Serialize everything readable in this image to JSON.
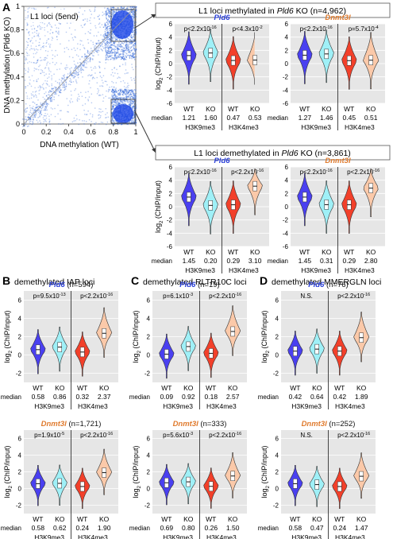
{
  "panels": {
    "A": "A",
    "B": "B",
    "C": "C",
    "D": "D",
    "B_title": "demethylated IAP loci",
    "C_title": "demethylated RLTR10C loci",
    "D_title": "demethylated MMERGLN loci"
  },
  "scatter": {
    "inset_label": "L1 loci (5end)",
    "xlabel": "DNA methylation  (WT)",
    "ylabel": "DNA methylation (Pld6 KO)",
    "xticks": [
      "0",
      "0.2",
      "0.4",
      "0.6",
      "0.8",
      "1"
    ],
    "yticks": [
      "0",
      "0.2",
      "0.4",
      "0.6",
      "0.8",
      "1"
    ]
  },
  "boxes": {
    "top_pre": "L1 loci methylated in ",
    "top_gene": "Pld6",
    "top_post": " KO (n=4,962)",
    "bot_pre": "L1 loci demethylated in ",
    "bot_gene": "Pld6",
    "bot_post": " KO (n=3,861)"
  },
  "axis": {
    "ylab_a": "log",
    "ylab_sub": "2",
    "ylab_b": " (ChIP/input)",
    "yticks_a": [
      "6",
      "4",
      "2",
      "0",
      "-2",
      "-4",
      "-6"
    ],
    "yticks_bcd": [
      "6",
      "4",
      "2",
      "0",
      "-2"
    ],
    "median_label": "median",
    "wt": "WT",
    "ko": "KO",
    "h3k9": "H3K9me3",
    "h3k4": "H3K4me3"
  },
  "colors": {
    "wt_h3k9": "#4a40f0",
    "ko_h3k9": "#9ff0f7",
    "wt_h3k4": "#f2402a",
    "ko_h3k4": "#fbc9a9",
    "pld6_title": "#2a3fd8",
    "dnmt3l_title": "#e07b2e",
    "bg": "#e6e6e6"
  },
  "chart_data": [
    {
      "type": "violin",
      "panel": "A-top",
      "gene": "Pld6",
      "p": [
        "p<2.2x10",
        "-16",
        "p<4.3x10",
        "-2"
      ],
      "medians": [
        "1.21",
        "1.60",
        "0.47",
        "0.53"
      ],
      "ylim": [
        -6,
        6
      ]
    },
    {
      "type": "violin",
      "panel": "A-top",
      "gene": "Dnmt3l",
      "p": [
        "p<2.2x10",
        "-16",
        "p=5.7x10",
        "-4"
      ],
      "medians": [
        "1.27",
        "1.46",
        "0.45",
        "0.51"
      ],
      "ylim": [
        -6,
        6
      ]
    },
    {
      "type": "violin",
      "panel": "A-bottom",
      "gene": "Pld6",
      "p": [
        "p<2.2x10",
        "-16",
        "p<2.2x10",
        "-16"
      ],
      "medians": [
        "1.45",
        "0.20",
        "0.29",
        "3.10"
      ],
      "ylim": [
        -6,
        6
      ]
    },
    {
      "type": "violin",
      "panel": "A-bottom",
      "gene": "Dnmt3l",
      "p": [
        "p<2.2x10",
        "-16",
        "p<2.2x10",
        "-16"
      ],
      "medians": [
        "1.45",
        "0.31",
        "0.29",
        "2.80"
      ],
      "ylim": [
        -6,
        6
      ]
    },
    {
      "type": "violin",
      "panel": "B",
      "gene": "Pld6",
      "n": "(n=594)",
      "p": [
        "p=9.5x10",
        "-13",
        "p<2.2x10",
        "-16"
      ],
      "medians": [
        "0.58",
        "0.86",
        "0.32",
        "2.37"
      ],
      "ylim": [
        -3,
        7
      ]
    },
    {
      "type": "violin",
      "panel": "B",
      "gene": "Dnmt3l",
      "n": "(n=1,721)",
      "p": [
        "p=1.9x10",
        "-5",
        "p<2.2x10",
        "-16"
      ],
      "medians": [
        "0.58",
        "0.62",
        "0.24",
        "1.90"
      ],
      "ylim": [
        -3,
        7
      ]
    },
    {
      "type": "violin",
      "panel": "C",
      "gene": "Pld6",
      "n": "(n=19)",
      "p": [
        "p=6.1x10",
        "-3",
        "p<2.2x10",
        "-16"
      ],
      "medians": [
        "0.09",
        "0.92",
        "0.18",
        "2.57"
      ],
      "ylim": [
        -3,
        7
      ]
    },
    {
      "type": "violin",
      "panel": "C",
      "gene": "Dnmt3l",
      "n": "(n=333)",
      "p": [
        "p=5.6x10",
        "-3",
        "p<2.2x10",
        "-16"
      ],
      "medians": [
        "0.69",
        "0.80",
        "0.26",
        "1.50"
      ],
      "ylim": [
        -3,
        7
      ]
    },
    {
      "type": "violin",
      "panel": "D",
      "gene": "Pld6",
      "n": "(n=76)",
      "p": [
        "N.S.",
        "",
        "p<2.2x10",
        "-16"
      ],
      "medians": [
        "0.42",
        "0.64",
        "0.42",
        "1.89"
      ],
      "ylim": [
        -3,
        7
      ]
    },
    {
      "type": "violin",
      "panel": "D",
      "gene": "Dnmt3l",
      "n": "(n=252)",
      "p": [
        "N.S.",
        "",
        "p<2.2x10",
        "-16"
      ],
      "medians": [
        "0.58",
        "0.47",
        "0.24",
        "1.47"
      ],
      "ylim": [
        -3,
        7
      ]
    }
  ]
}
